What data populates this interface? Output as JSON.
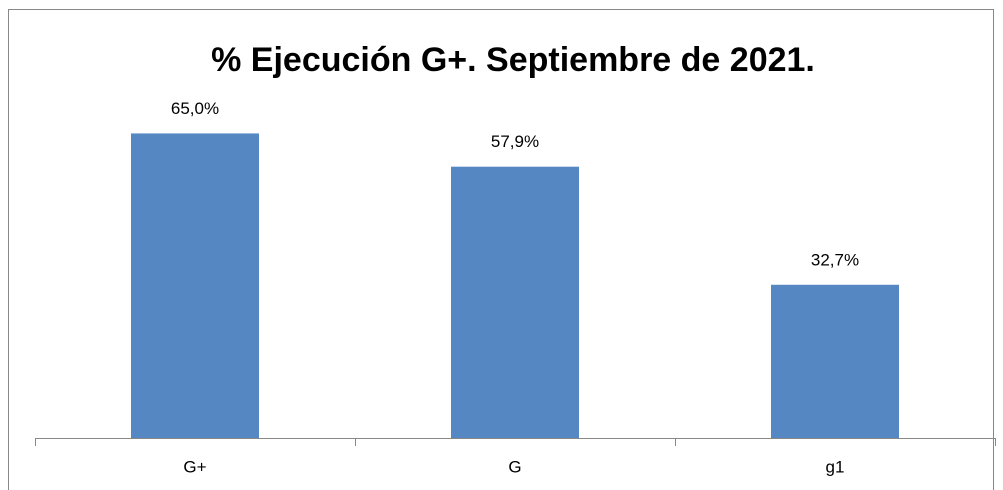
{
  "chart_data": {
    "type": "bar",
    "title": "% Ejecución G+. Septiembre de 2021.",
    "categories": [
      "G+",
      "G",
      "g1"
    ],
    "values": [
      65.0,
      57.9,
      32.7
    ],
    "value_labels": [
      "65,0%",
      "57,9%",
      "32,7%"
    ],
    "color": "#5588c2",
    "ylim": [
      0,
      70
    ]
  }
}
